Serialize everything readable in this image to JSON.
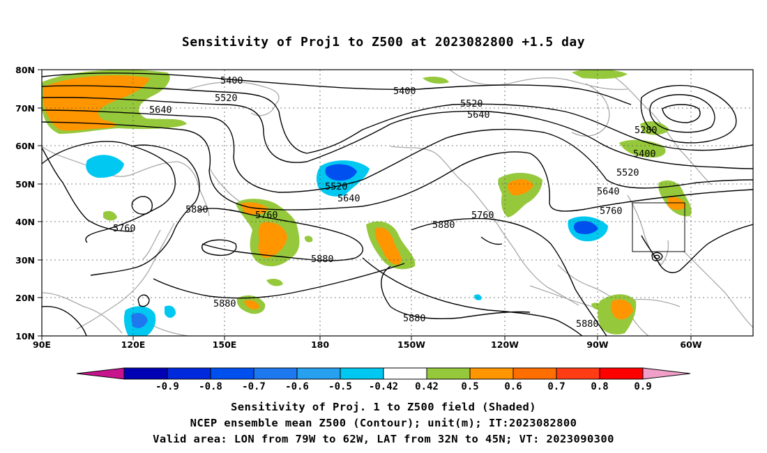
{
  "title": "Sensitivity of Proj1 to Z500 at 2023082800 +1.5 day",
  "map": {
    "lat_labels": [
      "80N",
      "70N",
      "60N",
      "50N",
      "40N",
      "30N",
      "20N",
      "10N"
    ],
    "lon_labels": [
      "90E",
      "120E",
      "150E",
      "180",
      "150W",
      "120W",
      "90W",
      "60W"
    ],
    "contour_labels": [
      {
        "text": "5400"
      },
      {
        "text": "5520"
      },
      {
        "text": "5640"
      },
      {
        "text": "5400"
      },
      {
        "text": "5520"
      },
      {
        "text": "5640"
      },
      {
        "text": "5280"
      },
      {
        "text": "5400"
      },
      {
        "text": "5520"
      },
      {
        "text": "5640"
      },
      {
        "text": "5760"
      },
      {
        "text": "5520"
      },
      {
        "text": "5640"
      },
      {
        "text": "5760"
      },
      {
        "text": "5880"
      },
      {
        "text": "5760"
      },
      {
        "text": "5760"
      },
      {
        "text": "5880"
      },
      {
        "text": "5760"
      },
      {
        "text": "5880"
      },
      {
        "text": "5880"
      },
      {
        "text": "5880"
      },
      {
        "text": "5880"
      }
    ]
  },
  "colorbar": {
    "labels": [
      "-0.9",
      "-0.8",
      "-0.7",
      "-0.6",
      "-0.5",
      "-0.42",
      "0.42",
      "0.5",
      "0.6",
      "0.7",
      "0.8",
      "0.9"
    ],
    "colors": [
      "#c8148c",
      "#0000b4",
      "#0028dc",
      "#0050f0",
      "#1e78f0",
      "#28a0f0",
      "#00c8f0",
      "#ffffff",
      "#96c83c",
      "#ff9600",
      "#ff6e00",
      "#ff3c14",
      "#ff0000",
      "#f0a0c8"
    ]
  },
  "captions": {
    "line1": "Sensitivity of Proj. 1 to Z500 field (Shaded)",
    "line2": "NCEP ensemble mean Z500 (Contour); unit(m); IT:2023082800",
    "line3": "Valid area: LON from 79W to 62W, LAT from 32N to 45N; VT: 2023090300"
  }
}
